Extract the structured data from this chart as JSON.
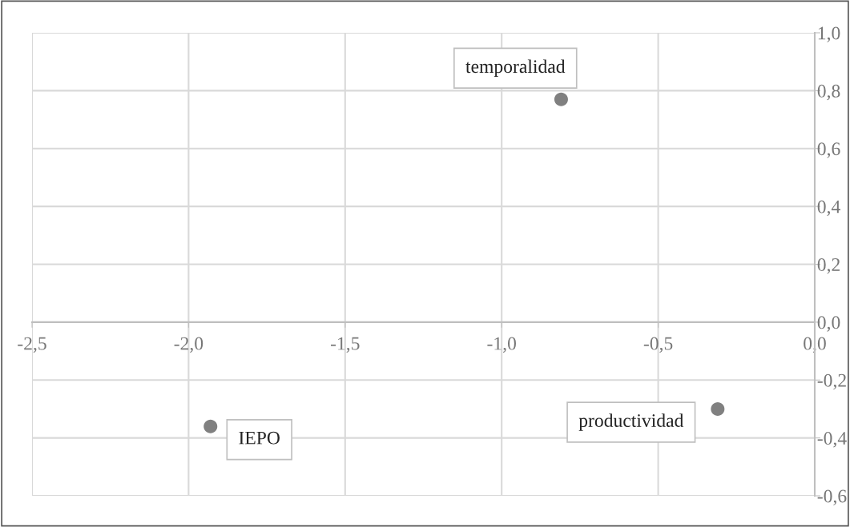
{
  "chart_data": {
    "type": "scatter",
    "x": [
      -0.81,
      -0.31,
      -1.93
    ],
    "values": [
      0.77,
      -0.3,
      -0.36
    ],
    "color": "#808080",
    "marker": "circle",
    "annotations": [
      {
        "text": "temporalidad",
        "x": -0.81,
        "y": 0.77
      },
      {
        "text": "productividad",
        "x": -0.31,
        "y": -0.3
      },
      {
        "text": "IEPO",
        "x": -1.93,
        "y": -0.36
      }
    ],
    "xlim": [
      -2.5,
      0.0
    ],
    "xticks": [
      {
        "value": -2.5,
        "label": "-2,5"
      },
      {
        "value": -2.0,
        "label": "-2,0"
      },
      {
        "value": -1.5,
        "label": "-1,5"
      },
      {
        "value": -1.0,
        "label": "-1,0"
      },
      {
        "value": -0.5,
        "label": "-0,5"
      },
      {
        "value": 0.0,
        "label": "0,0"
      }
    ],
    "ylim": [
      -0.6,
      1.0
    ],
    "yticks": [
      {
        "value": -0.6,
        "label": "-0,6"
      },
      {
        "value": -0.4,
        "label": "-0,4"
      },
      {
        "value": -0.2,
        "label": "-0,2"
      },
      {
        "value": 0.0,
        "label": "0,0"
      },
      {
        "value": 0.2,
        "label": "0,2"
      },
      {
        "value": 0.4,
        "label": "0,4"
      },
      {
        "value": 0.6,
        "label": "0,6"
      },
      {
        "value": 0.8,
        "label": "0,8"
      },
      {
        "value": 1.0,
        "label": "1,0"
      }
    ],
    "grid": true
  }
}
